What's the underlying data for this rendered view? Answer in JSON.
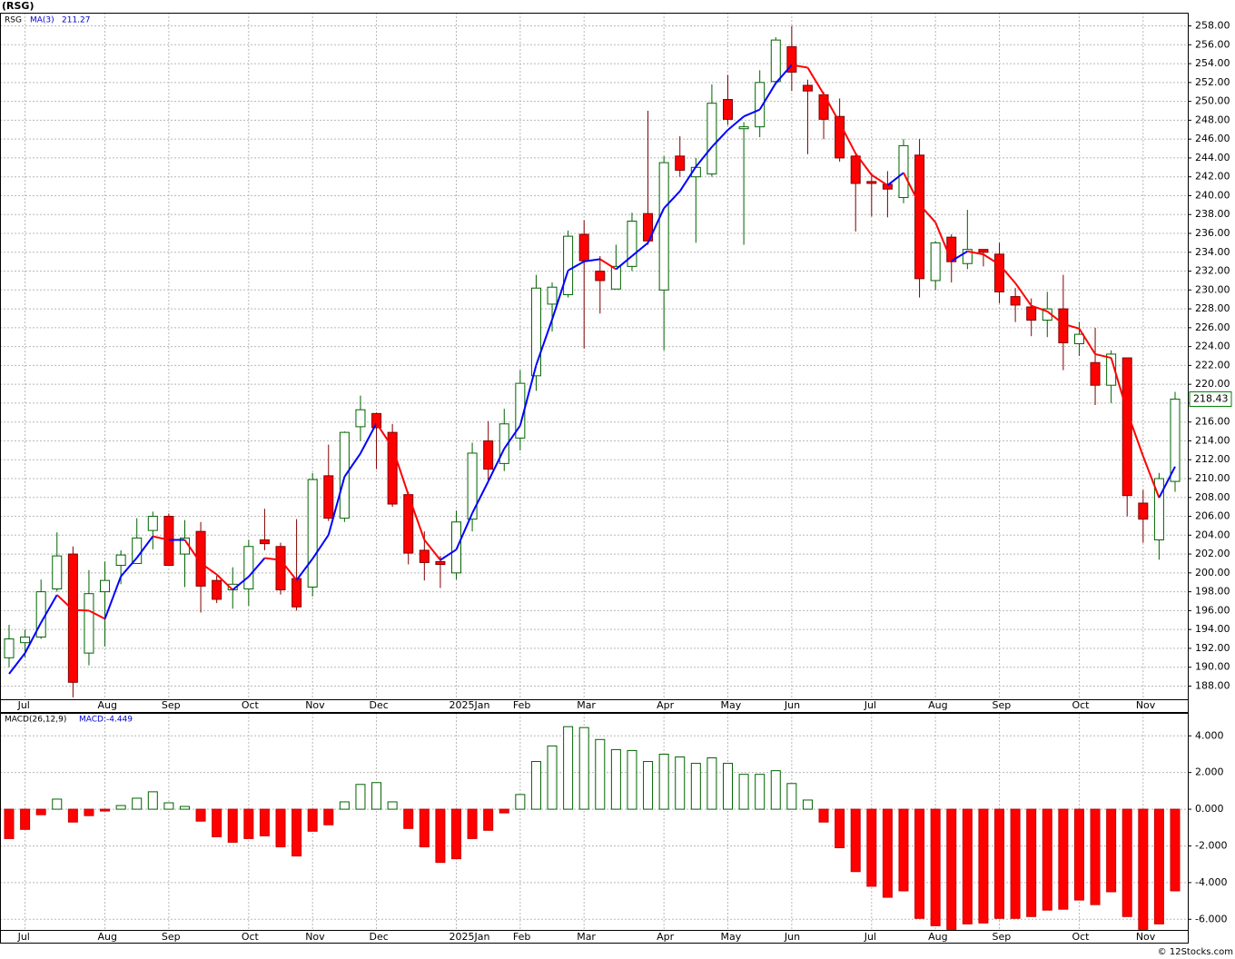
{
  "chart_data": [
    {
      "type": "candlestick",
      "title": "(RSG)",
      "symbol": "RSG",
      "categories": [
        null,
        "Jul",
        null,
        null,
        null,
        null,
        "Aug",
        null,
        null,
        null,
        "Sep",
        null,
        null,
        null,
        null,
        "Oct",
        null,
        null,
        null,
        "Nov",
        null,
        null,
        null,
        "Dec",
        null,
        null,
        null,
        null,
        "2025Jan",
        null,
        null,
        null,
        "Feb",
        null,
        null,
        null,
        "Mar",
        null,
        null,
        null,
        null,
        "Apr",
        null,
        null,
        null,
        "May",
        null,
        null,
        null,
        "Jun",
        null,
        null,
        null,
        null,
        "Jul",
        null,
        null,
        null,
        "Aug",
        null,
        null,
        null,
        "Sep",
        null,
        null,
        null,
        null,
        "Oct",
        null,
        null,
        null,
        "Nov",
        null,
        null
      ],
      "open": [
        191,
        192.6,
        193.2,
        198.3,
        202,
        191.5,
        198,
        200.8,
        201,
        204.5,
        206,
        202,
        204.4,
        199.2,
        198.2,
        198.3,
        203.5,
        202.8,
        199.4,
        198.5,
        210.3,
        205.8,
        215.5,
        216.9,
        214.9,
        208.3,
        202.4,
        201.2,
        200,
        205.7,
        214,
        211.6,
        214.3,
        220.9,
        228.5,
        229.5,
        235.9,
        232,
        230.1,
        232.5,
        238.1,
        230,
        244.2,
        242,
        242.3,
        250.2,
        247.1,
        247.3,
        252.1,
        255.8,
        251.7,
        250.7,
        248.4,
        244.2,
        241.5,
        241.2,
        239.8,
        244.3,
        231,
        235.6,
        232.8,
        234.3,
        233.8,
        229.3,
        228.2,
        226.8,
        228,
        224.3,
        222.3,
        219.9,
        222.8,
        207.4,
        203.5,
        209.7
      ],
      "high": [
        194.5,
        194,
        199.3,
        204.3,
        202.8,
        200.3,
        201.2,
        202.4,
        205.8,
        206.5,
        206.3,
        205.6,
        205.4,
        199.7,
        200.6,
        203.5,
        206.8,
        203.2,
        205.7,
        210.6,
        213.6,
        215,
        218.8,
        217,
        215.8,
        208.6,
        204.4,
        201.8,
        206.6,
        213.8,
        216.1,
        217.4,
        221.5,
        231.6,
        230.8,
        236.3,
        237.4,
        233.6,
        234.8,
        238.2,
        249,
        244.2,
        246.3,
        244,
        251.8,
        252.8,
        247.8,
        253.3,
        256.8,
        258,
        252.3,
        251,
        250.3,
        244.5,
        242.4,
        242.6,
        246,
        246,
        235.2,
        235.9,
        238.5,
        234.3,
        235,
        230.2,
        229.1,
        229.8,
        231.6,
        226.6,
        226,
        223.6,
        222.8,
        208.8,
        210.6,
        219.2
      ],
      "low": [
        190,
        191,
        193,
        198,
        186.8,
        190.2,
        192.2,
        198.8,
        201,
        202.5,
        200.8,
        198.5,
        195.8,
        196.8,
        196.2,
        196.5,
        202.4,
        197.7,
        196,
        197.5,
        205.5,
        205.4,
        214,
        211,
        207,
        200.9,
        199.2,
        198.4,
        199.3,
        204.4,
        209.7,
        210.8,
        213,
        219.3,
        225.6,
        229.2,
        223.8,
        227.5,
        230.1,
        232,
        234.8,
        223.6,
        242,
        235,
        242,
        247.5,
        234.8,
        246.2,
        251.8,
        251.1,
        244.4,
        246,
        243.6,
        236.2,
        237.8,
        237.7,
        239.2,
        229.2,
        230,
        230.8,
        232.2,
        232.5,
        228.6,
        226.6,
        225.1,
        225,
        221.5,
        223,
        217.8,
        218,
        206,
        203.2,
        201.4,
        208.6
      ],
      "close": [
        193,
        193.2,
        198,
        201.8,
        188.4,
        197.8,
        199.2,
        201.9,
        203.7,
        206,
        200.8,
        203.7,
        198.6,
        197.2,
        198.8,
        202.8,
        203.1,
        198.2,
        196.4,
        209.9,
        205.8,
        214.9,
        217.3,
        215.4,
        207.3,
        202.1,
        201.1,
        200.9,
        205.4,
        212.7,
        211,
        215.8,
        220.1,
        230.2,
        230.3,
        235.7,
        233.1,
        231,
        232.5,
        237.3,
        235.2,
        243.5,
        242.7,
        243,
        249.8,
        248.1,
        247.3,
        252,
        256.5,
        253.1,
        251.1,
        248.1,
        244,
        241.3,
        241.3,
        240.7,
        245.3,
        231.2,
        235,
        233,
        234.3,
        234,
        229.8,
        228.4,
        226.8,
        228,
        224.4,
        225.3,
        219.9,
        223.2,
        208.2,
        205.7,
        210,
        218.43
      ],
      "up_color": "#008000",
      "down_color": "#ff0000",
      "overlay": {
        "name": "MA(3)",
        "up_color": "#0000ff",
        "down_color": "#ff0000",
        "values": [
          189.3,
          191.5,
          194.73,
          197.67,
          196.07,
          196,
          195.13,
          199.63,
          201.6,
          203.87,
          203.5,
          203.5,
          201.03,
          199.83,
          198.2,
          199.6,
          201.57,
          201.37,
          199.23,
          201.5,
          204.03,
          210.2,
          212.67,
          215.87,
          213.33,
          208.27,
          203.5,
          201.37,
          202.47,
          206.33,
          209.7,
          213.17,
          215.63,
          222.03,
          226.87,
          232.07,
          233.03,
          233.27,
          232.2,
          233.6,
          235,
          238.67,
          240.47,
          243.07,
          245.17,
          246.97,
          248.4,
          249.13,
          251.93,
          253.87,
          253.57,
          250.77,
          247.73,
          244.47,
          242.2,
          241.1,
          242.43,
          239.07,
          237.17,
          233.07,
          234.1,
          233.77,
          232.7,
          230.73,
          228.33,
          227.73,
          226.4,
          225.9,
          223.2,
          222.8,
          217.1,
          212.37,
          207.97,
          211.27
        ]
      },
      "ylim": [
        186.6,
        259.4
      ],
      "yticks": [
        {
          "value": 188,
          "label": "188.00"
        },
        {
          "value": 190,
          "label": "190.00"
        },
        {
          "value": 192,
          "label": "192.00"
        },
        {
          "value": 194,
          "label": "194.00"
        },
        {
          "value": 196,
          "label": "196.00"
        },
        {
          "value": 198,
          "label": "198.00"
        },
        {
          "value": 200,
          "label": "200.00"
        },
        {
          "value": 202,
          "label": "202.00"
        },
        {
          "value": 204,
          "label": "204.00"
        },
        {
          "value": 206,
          "label": "206.00"
        },
        {
          "value": 208,
          "label": "208.00"
        },
        {
          "value": 210,
          "label": "210.00"
        },
        {
          "value": 212,
          "label": "212.00"
        },
        {
          "value": 214,
          "label": "214.00"
        },
        {
          "value": 216,
          "label": "216.00"
        },
        {
          "value": 218,
          "label": "218.00"
        },
        {
          "value": 220,
          "label": "220.00"
        },
        {
          "value": 222,
          "label": "222.00"
        },
        {
          "value": 224,
          "label": "224.00"
        },
        {
          "value": 226,
          "label": "226.00"
        },
        {
          "value": 228,
          "label": "228.00"
        },
        {
          "value": 230,
          "label": "230.00"
        },
        {
          "value": 232,
          "label": "232.00"
        },
        {
          "value": 234,
          "label": "234.00"
        },
        {
          "value": 236,
          "label": "236.00"
        },
        {
          "value": 238,
          "label": "238.00"
        },
        {
          "value": 240,
          "label": "240.00"
        },
        {
          "value": 242,
          "label": "242.00"
        },
        {
          "value": 244,
          "label": "244.00"
        },
        {
          "value": 246,
          "label": "246.00"
        },
        {
          "value": 248,
          "label": "248.00"
        },
        {
          "value": 250,
          "label": "250.00"
        },
        {
          "value": 252,
          "label": "252.00"
        },
        {
          "value": 254,
          "label": "254.00"
        },
        {
          "value": 256,
          "label": "256.00"
        },
        {
          "value": 258,
          "label": "258.00"
        }
      ],
      "grid": true
    },
    {
      "type": "bar",
      "title": "MACD(26,12,9)",
      "value_name": "MACD:",
      "categories": [
        null,
        "Jul",
        null,
        null,
        null,
        null,
        "Aug",
        null,
        null,
        null,
        "Sep",
        null,
        null,
        null,
        null,
        "Oct",
        null,
        null,
        null,
        "Nov",
        null,
        null,
        null,
        "Dec",
        null,
        null,
        null,
        null,
        "2025Jan",
        null,
        null,
        null,
        "Feb",
        null,
        null,
        null,
        "Mar",
        null,
        null,
        null,
        null,
        "Apr",
        null,
        null,
        null,
        "May",
        null,
        null,
        null,
        "Jun",
        null,
        null,
        null,
        null,
        "Jul",
        null,
        null,
        null,
        "Aug",
        null,
        null,
        null,
        "Sep",
        null,
        null,
        null,
        null,
        "Oct",
        null,
        null,
        null,
        "Nov",
        null,
        null
      ],
      "values": [
        -1.6,
        -1.1,
        -0.3,
        0.55,
        -0.7,
        -0.35,
        -0.1,
        0.2,
        0.6,
        0.95,
        0.35,
        0.15,
        -0.65,
        -1.5,
        -1.8,
        -1.6,
        -1.45,
        -2.05,
        -2.55,
        -1.2,
        -0.85,
        0.4,
        1.35,
        1.45,
        0.4,
        -1.05,
        -2.05,
        -2.9,
        -2.7,
        -1.6,
        -1.15,
        -0.2,
        0.8,
        2.6,
        3.45,
        4.5,
        4.45,
        3.8,
        3.25,
        3.2,
        2.6,
        3.0,
        2.85,
        2.5,
        2.8,
        2.5,
        1.9,
        1.9,
        2.1,
        1.4,
        0.5,
        -0.7,
        -2.1,
        -3.4,
        -4.2,
        -4.8,
        -4.45,
        -5.95,
        -6.35,
        -6.55,
        -6.25,
        -6.2,
        -5.95,
        -5.95,
        -5.85,
        -5.5,
        -5.45,
        -4.95,
        -5.2,
        -4.5,
        -5.85,
        -6.55,
        -6.25,
        -4.449
      ],
      "up_color": "#008000",
      "down_color": "#ff0000",
      "ylim": [
        -6.58,
        5.25
      ],
      "yticks": [
        {
          "value": 4,
          "label": "4.000"
        },
        {
          "value": 2,
          "label": "2.000"
        },
        {
          "value": 0,
          "label": "0.000"
        },
        {
          "value": -2,
          "label": "-2.000"
        },
        {
          "value": -4,
          "label": "-4.000"
        },
        {
          "value": -6,
          "label": "-6.000"
        }
      ],
      "grid": true
    }
  ],
  "footer": "© 12Stocks.com"
}
